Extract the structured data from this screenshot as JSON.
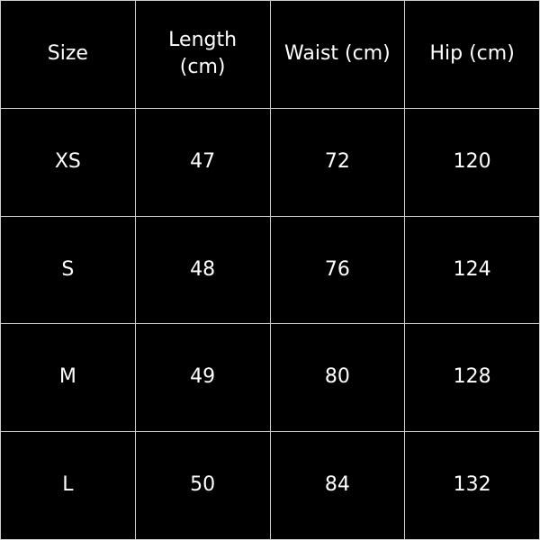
{
  "table": {
    "header": [
      "Size",
      "Length (cm)",
      "Waist (cm)",
      "Hip (cm)"
    ],
    "rows": [
      [
        "XS",
        47,
        72,
        120
      ],
      [
        "S",
        48,
        76,
        124
      ],
      [
        "M",
        49,
        80,
        128
      ],
      [
        "L",
        50,
        84,
        132
      ]
    ]
  }
}
